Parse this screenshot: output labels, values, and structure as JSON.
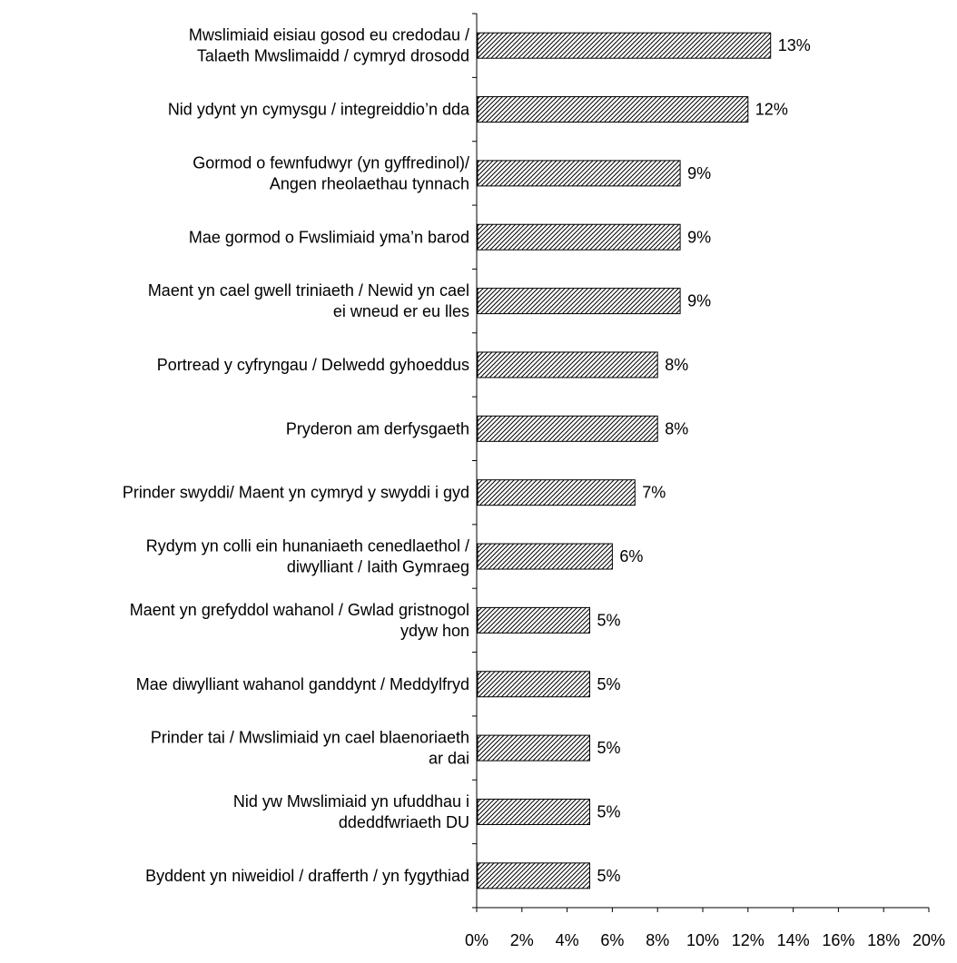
{
  "chart_data": {
    "type": "bar",
    "orientation": "horizontal",
    "categories": [
      [
        "Mwslimiaid eisiau gosod eu credodau /",
        "Talaeth Mwslimaidd / cymryd drosodd"
      ],
      [
        "Nid ydynt yn cymysgu / integreiddio’n dda"
      ],
      [
        "Gormod o fewnfudwyr (yn gyffredinol)/",
        "Angen rheolaethau tynnach"
      ],
      [
        "Mae gormod o Fwslimiaid yma’n barod"
      ],
      [
        "Maent yn cael gwell triniaeth / Newid yn cael",
        "ei wneud er eu lles"
      ],
      [
        "Portread y cyfryngau / Delwedd gyhoeddus"
      ],
      [
        "Pryderon am derfysgaeth"
      ],
      [
        "Prinder swyddi/ Maent yn cymryd y swyddi i gyd"
      ],
      [
        "Rydym yn colli  ein hunaniaeth cenedlaethol /",
        "diwylliant / Iaith Gymraeg"
      ],
      [
        "Maent yn grefyddol wahanol / Gwlad gristnogol",
        "ydyw hon"
      ],
      [
        "Mae diwylliant wahanol ganddynt / Meddylfryd"
      ],
      [
        "Prinder tai / Mwslimiaid yn cael blaenoriaeth",
        "ar dai"
      ],
      [
        "Nid yw Mwslimiaid yn ufuddhau i",
        "ddeddfwriaeth DU"
      ],
      [
        "Byddent yn niweidiol / drafferth / yn fygythiad"
      ]
    ],
    "values": [
      13,
      12,
      9,
      9,
      9,
      8,
      8,
      7,
      6,
      5,
      5,
      5,
      5,
      5
    ],
    "data_labels": [
      "13%",
      "12%",
      "9%",
      "9%",
      "9%",
      "8%",
      "8%",
      "7%",
      "6%",
      "5%",
      "5%",
      "5%",
      "5%",
      "5%"
    ],
    "xlim": [
      0,
      20
    ],
    "xticks": [
      0,
      2,
      4,
      6,
      8,
      10,
      12,
      14,
      16,
      18,
      20
    ],
    "xtick_labels": [
      "0%",
      "2%",
      "4%",
      "6%",
      "8%",
      "10%",
      "12%",
      "14%",
      "16%",
      "18%",
      "20%"
    ],
    "title": "",
    "xlabel": "",
    "ylabel": "",
    "grid": false,
    "legend": "none",
    "bar_fill": "diagonal-hatch",
    "colors": {
      "bar_stroke": "#000000",
      "hatch": "#000000",
      "background": "#ffffff"
    }
  }
}
